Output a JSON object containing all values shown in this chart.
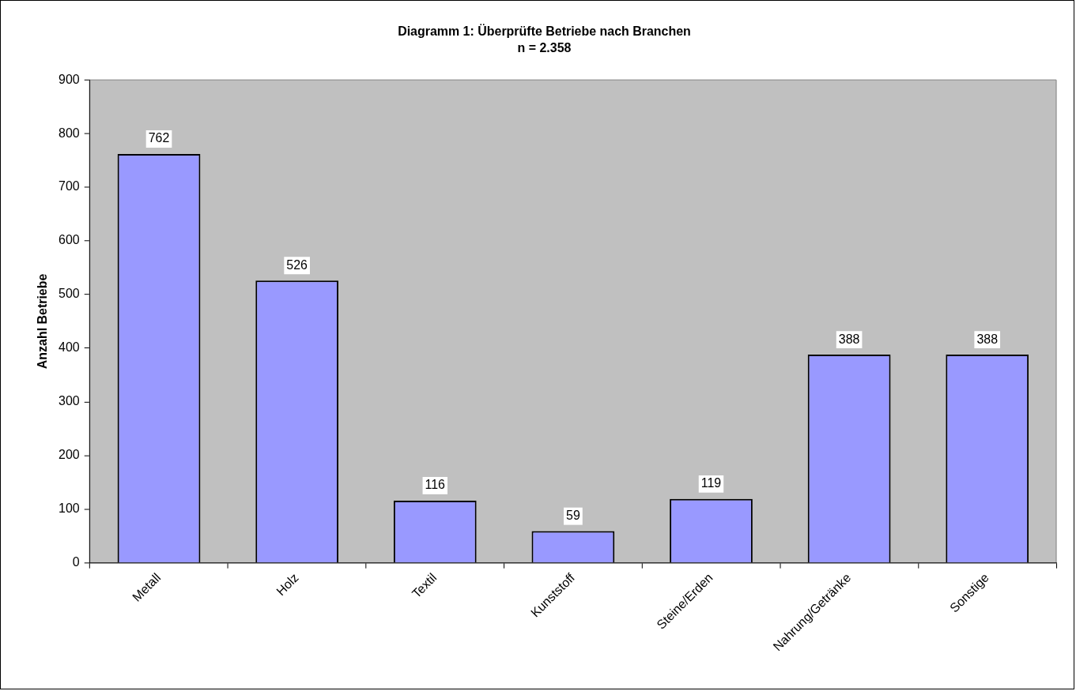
{
  "chart_data": {
    "type": "bar",
    "title": "Diagramm 1: Überprüfte Betriebe nach Branchen",
    "subtitle": "n = 2.358",
    "ylabel": "Anzahl Betriebe",
    "categories": [
      "Metall",
      "Holz",
      "Textil",
      "Kunststoff",
      "Steine/Erden",
      "Nahrung/Getränke",
      "Sonstige"
    ],
    "values": [
      762,
      526,
      116,
      59,
      119,
      388,
      388
    ],
    "color": "#9999ff",
    "ylim": [
      0,
      900
    ],
    "yticks": [
      0,
      100,
      200,
      300,
      400,
      500,
      600,
      700,
      800,
      900
    ],
    "grid": false,
    "legend": false,
    "data_labels": true
  }
}
